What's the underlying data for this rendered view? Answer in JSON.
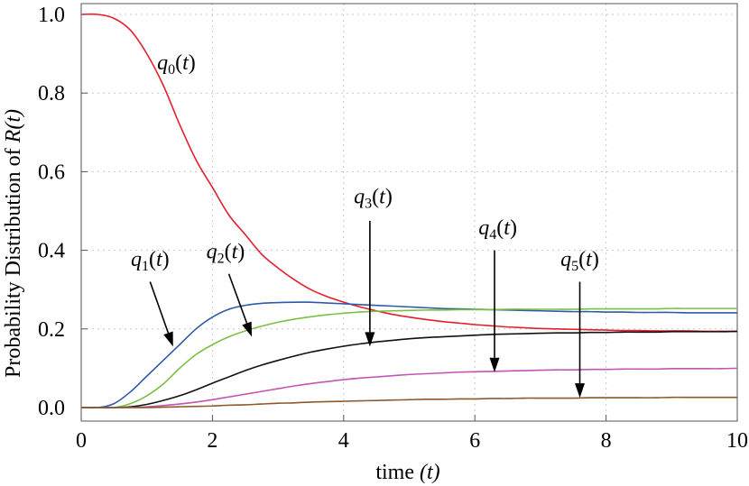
{
  "chart_data": {
    "type": "line",
    "title": "",
    "xlabel": "time",
    "xlabel_var": "(t)",
    "ylabel": "Probability  Distribution of",
    "ylabel_var": "R(t)",
    "xlim": [
      0,
      10
    ],
    "ylim": [
      0,
      1.0
    ],
    "xticks": [
      0,
      2,
      4,
      6,
      8,
      10
    ],
    "xtick_labels": [
      "0",
      "2",
      "4",
      "6",
      "8",
      "10"
    ],
    "yticks": [
      0.0,
      0.2,
      0.4,
      0.6,
      0.8,
      1.0
    ],
    "ytick_labels": [
      "0.0",
      "0.2",
      "0.4",
      "0.6",
      "0.8",
      "1.0"
    ],
    "grid": true,
    "x": [
      0,
      0.25,
      0.5,
      0.75,
      1,
      1.25,
      1.5,
      1.75,
      2,
      2.25,
      2.5,
      2.75,
      3,
      3.25,
      3.5,
      3.75,
      4,
      4.25,
      4.5,
      4.75,
      5,
      5.25,
      5.5,
      5.75,
      6,
      6.25,
      6.5,
      6.75,
      7,
      7.25,
      7.5,
      7.75,
      8,
      8.25,
      8.5,
      8.75,
      9,
      9.25,
      9.5,
      9.75,
      10
    ],
    "series": [
      {
        "name": "q0",
        "sub": "0",
        "color": "#e3202b",
        "values": [
          1.0,
          1.0,
          0.99,
          0.96,
          0.9,
          0.82,
          0.72,
          0.63,
          0.56,
          0.49,
          0.44,
          0.39,
          0.355,
          0.325,
          0.3,
          0.282,
          0.268,
          0.256,
          0.246,
          0.237,
          0.23,
          0.224,
          0.219,
          0.215,
          0.211,
          0.208,
          0.205,
          0.203,
          0.201,
          0.2,
          0.199,
          0.198,
          0.197,
          0.196,
          0.196,
          0.195,
          0.195,
          0.195,
          0.194,
          0.194,
          0.194
        ]
      },
      {
        "name": "q1",
        "sub": "1",
        "color": "#2e5aa8",
        "values": [
          0.0,
          0.0,
          0.01,
          0.04,
          0.08,
          0.12,
          0.16,
          0.2,
          0.23,
          0.25,
          0.26,
          0.265,
          0.267,
          0.268,
          0.268,
          0.266,
          0.264,
          0.262,
          0.26,
          0.258,
          0.256,
          0.254,
          0.252,
          0.251,
          0.25,
          0.249,
          0.248,
          0.247,
          0.246,
          0.245,
          0.244,
          0.244,
          0.243,
          0.243,
          0.242,
          0.242,
          0.242,
          0.241,
          0.241,
          0.241,
          0.241
        ]
      },
      {
        "name": "q2",
        "sub": "2",
        "color": "#7ac143",
        "values": [
          0.0,
          0.0,
          0.0,
          0.01,
          0.03,
          0.06,
          0.1,
          0.135,
          0.16,
          0.18,
          0.195,
          0.207,
          0.217,
          0.225,
          0.231,
          0.236,
          0.24,
          0.243,
          0.245,
          0.246,
          0.247,
          0.248,
          0.248,
          0.249,
          0.249,
          0.249,
          0.25,
          0.25,
          0.25,
          0.25,
          0.25,
          0.251,
          0.251,
          0.251,
          0.251,
          0.251,
          0.252,
          0.252,
          0.252,
          0.252,
          0.252
        ]
      },
      {
        "name": "q3",
        "sub": "3",
        "color": "#111111",
        "values": [
          0.0,
          0.0,
          0.0,
          0.002,
          0.008,
          0.018,
          0.03,
          0.045,
          0.062,
          0.078,
          0.094,
          0.108,
          0.12,
          0.131,
          0.141,
          0.149,
          0.156,
          0.162,
          0.167,
          0.171,
          0.175,
          0.178,
          0.18,
          0.182,
          0.184,
          0.186,
          0.187,
          0.188,
          0.189,
          0.19,
          0.19,
          0.191,
          0.191,
          0.192,
          0.192,
          0.192,
          0.193,
          0.193,
          0.193,
          0.193,
          0.194
        ]
      },
      {
        "name": "q4",
        "sub": "4",
        "color": "#c554b2",
        "values": [
          0.0,
          0.0,
          0.0,
          0.0,
          0.002,
          0.005,
          0.009,
          0.014,
          0.02,
          0.027,
          0.034,
          0.041,
          0.048,
          0.055,
          0.061,
          0.066,
          0.071,
          0.075,
          0.078,
          0.081,
          0.084,
          0.086,
          0.088,
          0.09,
          0.091,
          0.092,
          0.093,
          0.094,
          0.095,
          0.096,
          0.096,
          0.097,
          0.097,
          0.098,
          0.098,
          0.098,
          0.099,
          0.099,
          0.099,
          0.099,
          0.1
        ]
      },
      {
        "name": "q5",
        "sub": "5",
        "color": "#8b5a2b",
        "values": [
          0.0,
          0.0,
          0.0,
          0.0,
          0.0,
          0.001,
          0.002,
          0.003,
          0.004,
          0.006,
          0.007,
          0.009,
          0.011,
          0.012,
          0.014,
          0.015,
          0.016,
          0.017,
          0.018,
          0.019,
          0.02,
          0.021,
          0.021,
          0.022,
          0.022,
          0.023,
          0.023,
          0.024,
          0.024,
          0.024,
          0.024,
          0.025,
          0.025,
          0.025,
          0.025,
          0.025,
          0.026,
          0.026,
          0.026,
          0.026,
          0.026
        ]
      }
    ],
    "annotations": [
      {
        "series": "q0",
        "label_q": "q",
        "label_sub": "0",
        "label_t": "(t)",
        "label_at": [
          1.45,
          0.86
        ],
        "arrow": null
      },
      {
        "series": "q1",
        "label_q": "q",
        "label_sub": "1",
        "label_t": "(t)",
        "label_at": [
          1.05,
          0.36
        ],
        "arrow": {
          "from": [
            1.05,
            0.32
          ],
          "to": [
            1.4,
            0.155
          ]
        }
      },
      {
        "series": "q2",
        "label_q": "q",
        "label_sub": "2",
        "label_t": "(t)",
        "label_at": [
          2.2,
          0.38
        ],
        "arrow": {
          "from": [
            2.25,
            0.34
          ],
          "to": [
            2.6,
            0.18
          ]
        }
      },
      {
        "series": "q3",
        "label_q": "q",
        "label_sub": "3",
        "label_t": "(t)",
        "label_at": [
          4.45,
          0.52
        ],
        "arrow": {
          "from": [
            4.4,
            0.475
          ],
          "to": [
            4.4,
            0.155
          ]
        }
      },
      {
        "series": "q4",
        "label_q": "q",
        "label_sub": "4",
        "label_t": "(t)",
        "label_at": [
          6.35,
          0.44
        ],
        "arrow": {
          "from": [
            6.3,
            0.4
          ],
          "to": [
            6.3,
            0.09
          ]
        }
      },
      {
        "series": "q5",
        "label_q": "q",
        "label_sub": "5",
        "label_t": "(t)",
        "label_at": [
          7.6,
          0.36
        ],
        "arrow": {
          "from": [
            7.6,
            0.32
          ],
          "to": [
            7.6,
            0.025
          ]
        }
      }
    ]
  }
}
